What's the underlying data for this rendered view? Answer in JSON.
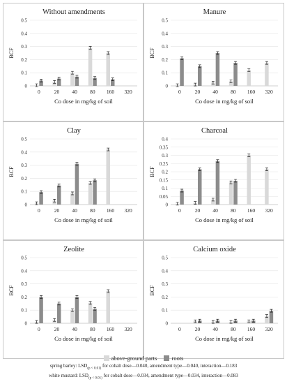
{
  "legend": {
    "above_label": "above-ground parts",
    "roots_label": "roots",
    "above_color": "#d9d9d9",
    "roots_color": "#8c8c8c"
  },
  "notes": {
    "line1_prefix": "spring barley: LSD",
    "line1_sub": "(p < 0.01)",
    "line1_suffix": " for cobalt dose—0.040, amendment type—0.040, interaction—0.183",
    "line2_prefix": "white mustard: LSD",
    "line2_sub": "(p < 0.01)",
    "line2_suffix": " for cobalt dose—0.034, amendment type—0.034, interaction—0.083"
  },
  "chart_data": [
    {
      "type": "bar",
      "title": "Without amendments",
      "xlabel": "Co dose in mg/kg of soil",
      "ylabel": "BCF",
      "ylim": [
        0,
        0.5
      ],
      "yticks": [
        "0",
        "0.1",
        "0.2",
        "0.3",
        "0.4",
        "0.5"
      ],
      "categories": [
        "0",
        "20",
        "40",
        "80",
        "160",
        "320"
      ],
      "series": [
        {
          "name": "above-ground parts",
          "values": [
            0.005,
            0.03,
            0.1,
            0.29,
            0.25,
            null
          ]
        },
        {
          "name": "roots",
          "values": [
            0.04,
            0.055,
            0.07,
            0.06,
            0.05,
            null
          ]
        }
      ]
    },
    {
      "type": "bar",
      "title": "Manure",
      "xlabel": "Co dose in mg/kg of soil",
      "ylabel": "BCF",
      "ylim": [
        0,
        0.5
      ],
      "yticks": [
        "0",
        "0.1",
        "0.2",
        "0.3",
        "0.4",
        "0.5"
      ],
      "categories": [
        "0",
        "20",
        "40",
        "80",
        "160",
        "320"
      ],
      "series": [
        {
          "name": "above-ground parts",
          "values": [
            0.005,
            0.01,
            0.025,
            0.035,
            0.12,
            0.175
          ]
        },
        {
          "name": "roots",
          "values": [
            0.21,
            0.15,
            0.25,
            0.175,
            null,
            null
          ]
        }
      ]
    },
    {
      "type": "bar",
      "title": "Clay",
      "xlabel": "Co dose in mg/kg of soil",
      "ylabel": "BCF",
      "ylim": [
        0,
        0.5
      ],
      "yticks": [
        "0",
        "0.1",
        "0.2",
        "0.3",
        "0.4",
        "0.5"
      ],
      "categories": [
        "0",
        "20",
        "40",
        "80",
        "160",
        "320"
      ],
      "series": [
        {
          "name": "above-ground parts",
          "values": [
            0.01,
            0.03,
            0.085,
            0.165,
            0.42,
            null
          ]
        },
        {
          "name": "roots",
          "values": [
            0.095,
            0.145,
            0.31,
            0.185,
            null,
            null
          ]
        }
      ]
    },
    {
      "type": "bar",
      "title": "Charcoal",
      "xlabel": "Co dose in mg/kg of soil",
      "ylabel": "BCF",
      "ylim": [
        0,
        0.4
      ],
      "yticks": [
        "0",
        "0.05",
        "0.1",
        "0.15",
        "0.2",
        "0.25",
        "0.3",
        "0.35",
        "0.4"
      ],
      "categories": [
        "0",
        "20",
        "40",
        "80",
        "160",
        "320"
      ],
      "series": [
        {
          "name": "above-ground parts",
          "values": [
            0.005,
            0.01,
            0.03,
            0.135,
            0.3,
            0.215
          ]
        },
        {
          "name": "roots",
          "values": [
            0.085,
            0.215,
            0.265,
            0.145,
            null,
            null
          ]
        }
      ]
    },
    {
      "type": "bar",
      "title": "Zeolite",
      "xlabel": "Co dose in mg/kg of soil",
      "ylabel": "BCF",
      "ylim": [
        0,
        0.5
      ],
      "yticks": [
        "0",
        "0.1",
        "0.2",
        "0.3",
        "0.4",
        "0.5"
      ],
      "categories": [
        "0",
        "20",
        "40",
        "80",
        "160",
        "320"
      ],
      "series": [
        {
          "name": "above-ground parts",
          "values": [
            0.01,
            0.025,
            0.1,
            0.155,
            0.245,
            null
          ]
        },
        {
          "name": "roots",
          "values": [
            0.2,
            0.15,
            0.2,
            0.11,
            null,
            null
          ]
        }
      ]
    },
    {
      "type": "bar",
      "title": "Calcium oxide",
      "xlabel": "Co dose in mg/kg of soil",
      "ylabel": "BCF",
      "ylim": [
        0,
        0.5
      ],
      "yticks": [
        "0",
        "0.1",
        "0.2",
        "0.3",
        "0.4",
        "0.5"
      ],
      "categories": [
        "0",
        "20",
        "40",
        "80",
        "160",
        "320"
      ],
      "series": [
        {
          "name": "above-ground parts",
          "values": [
            null,
            0.015,
            0.01,
            0.01,
            0.015,
            0.055
          ]
        },
        {
          "name": "roots",
          "values": [
            null,
            0.02,
            0.02,
            0.02,
            0.02,
            0.095
          ]
        }
      ]
    }
  ]
}
